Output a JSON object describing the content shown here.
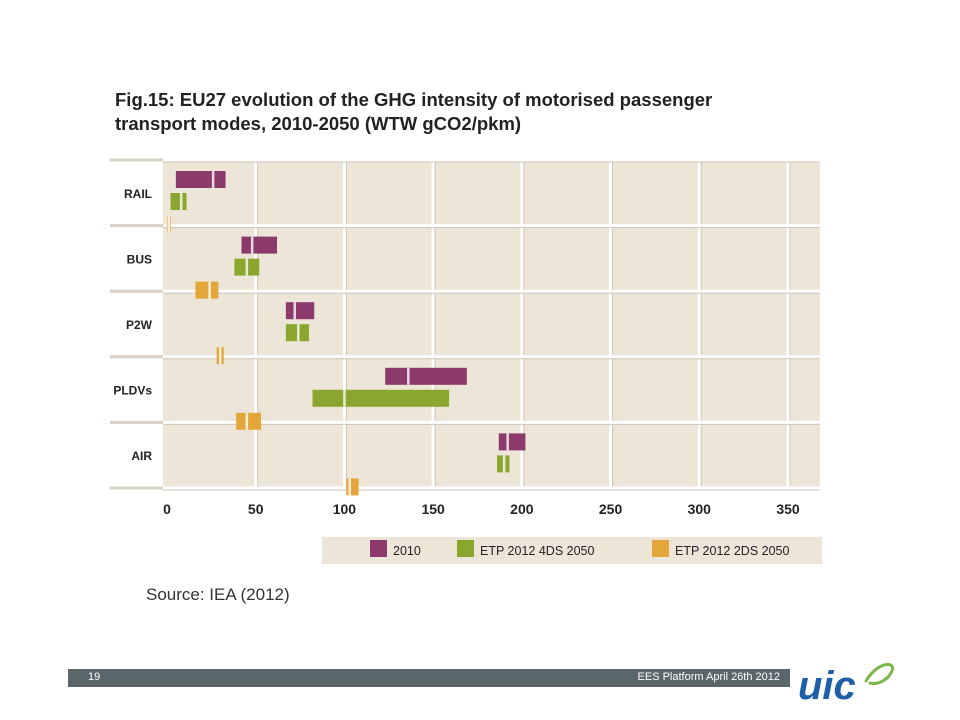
{
  "chart_data": {
    "type": "range-bar",
    "title_lines": [
      "Fig.15: EU27 evolution of the GHG intensity of motorised passenger",
      "transport modes, 2010-2050 (WTW gCO2/pkm)"
    ],
    "categories": [
      "RAIL",
      "BUS",
      "P2W",
      "PLDVs",
      "AIR"
    ],
    "x_ticks": [
      "0",
      "50",
      "100",
      "150",
      "200",
      "250",
      "300",
      "350"
    ],
    "xlim": [
      0,
      360
    ],
    "grid": true,
    "legend_position": "bottom-right",
    "series": [
      {
        "name": "2010",
        "color": "#8b3a6b",
        "ranges": [
          [
            5,
            33,
            26
          ],
          [
            42,
            62,
            48
          ],
          [
            67,
            83,
            72
          ],
          [
            123,
            169,
            136
          ],
          [
            187,
            202,
            192
          ]
        ]
      },
      {
        "name": "ETP 2012 4DS 2050",
        "color": "#8aa62f",
        "ranges": [
          [
            2,
            11,
            8
          ],
          [
            38,
            52,
            45
          ],
          [
            67,
            80,
            74
          ],
          [
            82,
            159,
            100
          ],
          [
            186,
            193,
            190
          ]
        ]
      },
      {
        "name": "ETP 2012 2DS 2050",
        "color": "#e3a63a",
        "ranges": [
          [
            0,
            2,
            1
          ],
          [
            16,
            29,
            24
          ],
          [
            28,
            32,
            30
          ],
          [
            39,
            53,
            45
          ],
          [
            101,
            108,
            103
          ]
        ]
      }
    ]
  },
  "source_text": "Source: IEA (2012)",
  "footer": {
    "page_number": "19",
    "text": "EES Platform April 26th 2012"
  },
  "logo": {
    "text": "uic"
  },
  "colors": {
    "plot_background": "#ede5d8",
    "grid": "#d0c6b5",
    "footer_bar": "#59676a",
    "logo_blue": "#1f5fa8",
    "logo_green": "#7ab648"
  }
}
